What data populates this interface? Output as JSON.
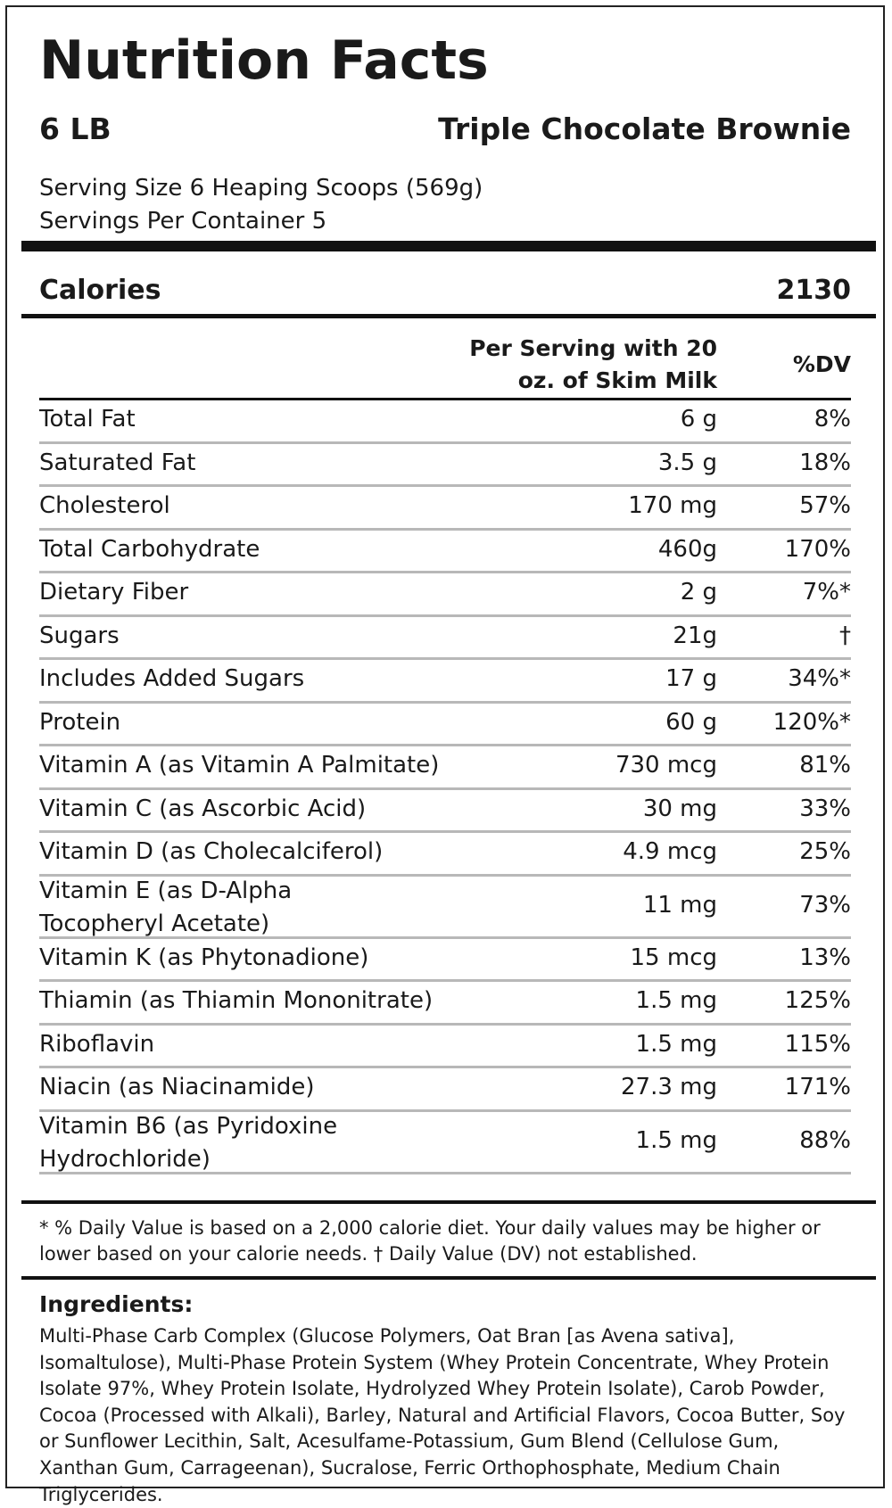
{
  "label": {
    "title": "Nutrition Facts",
    "size": "6 LB",
    "flavor": "Triple Chocolate Brownie",
    "serving_size": "Serving Size 6 Heaping Scoops (569g)",
    "servings_per_container": "Servings Per Container 5",
    "calories_label": "Calories",
    "calories_value": "2130",
    "column_per_serving": "Per Serving with 20 oz. of Skim Milk",
    "column_dv": "%DV"
  },
  "nutrients": [
    {
      "name": "Total Fat",
      "amount": "6 g",
      "dv": "8%"
    },
    {
      "name": "Saturated Fat",
      "amount": "3.5 g",
      "dv": "18%"
    },
    {
      "name": "Cholesterol",
      "amount": "170 mg",
      "dv": "57%"
    },
    {
      "name": "Total Carbohydrate",
      "amount": "460g",
      "dv": "170%"
    },
    {
      "name": "Dietary Fiber",
      "amount": "2 g",
      "dv": "7%*"
    },
    {
      "name": "Sugars",
      "amount": "21g",
      "dv": "†"
    },
    {
      "name": "Includes Added Sugars",
      "amount": "17 g",
      "dv": "34%*"
    },
    {
      "name": "Protein",
      "amount": "60 g",
      "dv": "120%*"
    },
    {
      "name": "Vitamin A (as Vitamin A Palmitate)",
      "amount": "730 mcg",
      "dv": "81%"
    },
    {
      "name": "Vitamin C (as Ascorbic Acid)",
      "amount": "30 mg",
      "dv": "33%"
    },
    {
      "name": "Vitamin D (as Cholecalciferol)",
      "amount": "4.9 mcg",
      "dv": "25%"
    },
    {
      "name": "Vitamin E (as D-Alpha Tocopheryl Acetate)",
      "amount": "11 mg",
      "dv": "73%"
    },
    {
      "name": "Vitamin K (as Phytonadione)",
      "amount": "15 mcg",
      "dv": "13%"
    },
    {
      "name": "Thiamin (as Thiamin Mononitrate)",
      "amount": "1.5 mg",
      "dv": "125%"
    },
    {
      "name": "Riboflavin",
      "amount": "1.5 mg",
      "dv": "115%"
    },
    {
      "name": "Niacin (as Niacinamide)",
      "amount": "27.3 mg",
      "dv": "171%"
    },
    {
      "name": "Vitamin B6 (as Pyridoxine Hydrochloride)",
      "amount": "1.5 mg",
      "dv": "88%"
    }
  ],
  "footnote": "* % Daily Value is based on a 2,000 calorie diet. Your daily values may be higher or lower based on your calorie needs. † Daily Value (DV) not established.",
  "ingredients": {
    "title": "Ingredients:",
    "text": "Multi-Phase Carb Complex (Glucose Polymers, Oat Bran [as Avena sativa], Isomaltulose), Multi-Phase Protein System (Whey Protein Concentrate, Whey Protein Isolate 97%, Whey Protein Isolate, Hydrolyzed Whey Protein Isolate), Carob Powder, Cocoa (Processed with Alkali), Barley, Natural and Artificial Flavors, Cocoa Butter, Soy or Sunflower Lecithin, Salt, Acesulfame-Potassium, Gum Blend (Cellulose Gum, Xanthan Gum, Carrageenan), Sucralose, Ferric Orthophosphate, Medium Chain Triglycerides."
  }
}
